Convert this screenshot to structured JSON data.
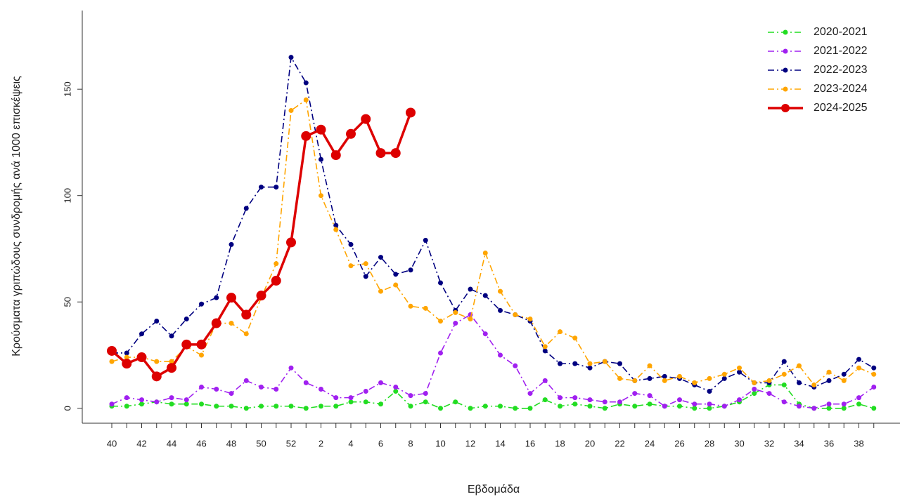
{
  "chart_data": {
    "type": "line",
    "x_label": "Εβδομάδα",
    "y_label": "Κρούσματα γριπώδους συνδρομής ανά 1000 επισκέψεις",
    "categories": [
      "40",
      null,
      "42",
      null,
      "44",
      null,
      "46",
      null,
      "48",
      null,
      "50",
      null,
      "52",
      null,
      "2",
      null,
      "4",
      null,
      "6",
      null,
      "8",
      null,
      "10",
      null,
      "12",
      null,
      "14",
      null,
      "16",
      null,
      "18",
      null,
      "20",
      null,
      "22",
      null,
      "24",
      null,
      "26",
      null,
      "28",
      null,
      "30",
      null,
      "32",
      null,
      "34",
      null,
      "36",
      null,
      "38",
      null
    ],
    "ylim": [
      -7,
      187
    ],
    "yticks": [
      0,
      50,
      100,
      150
    ],
    "legend": "upper right",
    "series": [
      {
        "name": "2020-2021",
        "color": "#22dd22",
        "linestyle": "dashdot",
        "values": [
          1,
          1,
          2,
          3,
          2,
          2,
          2,
          1,
          1,
          0,
          1,
          1,
          1,
          0,
          1,
          1,
          3,
          3,
          2,
          8,
          1,
          3,
          0,
          3,
          0,
          1,
          1,
          0,
          0,
          4,
          1,
          2,
          1,
          0,
          2,
          1,
          2,
          1,
          1,
          0,
          0,
          1,
          3,
          7,
          11,
          11,
          2,
          0,
          0,
          0,
          2,
          0
        ]
      },
      {
        "name": "2021-2022",
        "color": "#a020f0",
        "linestyle": "dashdot",
        "values": [
          2,
          5,
          4,
          3,
          5,
          4,
          10,
          9,
          7,
          13,
          10,
          9,
          19,
          12,
          9,
          5,
          5,
          8,
          12,
          10,
          6,
          7,
          26,
          40,
          44,
          35,
          25,
          20,
          7,
          13,
          5,
          5,
          4,
          3,
          3,
          7,
          6,
          1,
          4,
          2,
          2,
          1,
          4,
          9,
          7,
          3,
          1,
          0,
          2,
          2,
          5,
          10
        ]
      },
      {
        "name": "2022-2023",
        "color": "#000080",
        "linestyle": "dashdot",
        "values": [
          26,
          26,
          35,
          41,
          34,
          42,
          49,
          52,
          77,
          94,
          104,
          104,
          165,
          153,
          117,
          86,
          77,
          62,
          71,
          63,
          65,
          79,
          59,
          46,
          56,
          53,
          46,
          44,
          41,
          27,
          21,
          21,
          19,
          22,
          21,
          13,
          14,
          15,
          14,
          11,
          8,
          14,
          17,
          12,
          12,
          22,
          12,
          10,
          13,
          16,
          23,
          19
        ]
      },
      {
        "name": "2023-2024",
        "color": "#ffa500",
        "linestyle": "dashdot",
        "values": [
          22,
          24,
          24,
          22,
          22,
          29,
          25,
          40,
          40,
          35,
          52,
          68,
          140,
          145,
          100,
          84,
          67,
          68,
          55,
          58,
          48,
          47,
          41,
          45,
          42,
          73,
          55,
          44,
          42,
          29,
          36,
          33,
          21,
          22,
          14,
          13,
          20,
          13,
          15,
          12,
          14,
          16,
          19,
          12,
          13,
          16,
          20,
          11,
          17,
          13,
          19,
          16
        ]
      },
      {
        "name": "2024-2025",
        "color": "#dd0000",
        "linestyle": "solid",
        "values": [
          27,
          21,
          24,
          15,
          19,
          30,
          30,
          40,
          52,
          44,
          53,
          60,
          78,
          128,
          131,
          119,
          129,
          136,
          120,
          120,
          139,
          null,
          null,
          null,
          null,
          null,
          null,
          null,
          null,
          null,
          null,
          null,
          null,
          null,
          null,
          null,
          null,
          null,
          null,
          null,
          null,
          null,
          null,
          null,
          null,
          null,
          null,
          null,
          null,
          null,
          null,
          null
        ]
      }
    ]
  }
}
